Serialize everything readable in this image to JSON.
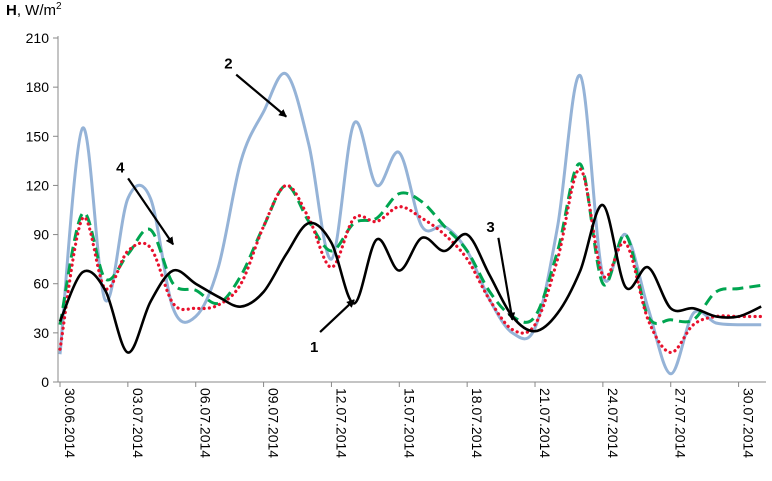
{
  "chart_data": {
    "type": "line",
    "ylabel": "H, W/m²",
    "ylabel_parts": {
      "bold": "H",
      "rest": ", W/m",
      "sup": "2"
    },
    "ylim": [
      0,
      210
    ],
    "yticks": [
      "0",
      "30",
      "60",
      "90",
      "120",
      "150",
      "180",
      "210"
    ],
    "xticks": [
      "30.06.2014",
      "03.07.2014",
      "06.07.2014",
      "09.07.2014",
      "12.07.2014",
      "15.07.2014",
      "18.07.2014",
      "21.07.2014",
      "24.07.2014",
      "27.07.2014",
      "30.07.2014"
    ],
    "grid": false,
    "series": [
      {
        "name": "1",
        "color": "#000000",
        "dash": "solid",
        "x": [
          "30.06.2014",
          "01.07.2014",
          "02.07.2014",
          "03.07.2014",
          "04.07.2014",
          "05.07.2014",
          "06.07.2014",
          "07.07.2014",
          "08.07.2014",
          "09.07.2014",
          "10.07.2014",
          "11.07.2014",
          "12.07.2014",
          "13.07.2014",
          "14.07.2014",
          "15.07.2014",
          "16.07.2014",
          "17.07.2014",
          "18.07.2014",
          "19.07.2014",
          "20.07.2014",
          "21.07.2014",
          "22.07.2014",
          "23.07.2014",
          "24.07.2014",
          "25.07.2014",
          "26.07.2014",
          "27.07.2014",
          "28.07.2014",
          "29.07.2014",
          "30.07.2014",
          "31.07.2014"
        ],
        "values": [
          37,
          67,
          56,
          18,
          49,
          68,
          60,
          52,
          46,
          55,
          78,
          97,
          85,
          48,
          87,
          68,
          88,
          80,
          90,
          65,
          40,
          31,
          42,
          68,
          108,
          58,
          70,
          45,
          45,
          40,
          40,
          46
        ]
      },
      {
        "name": "2",
        "color": "#95b3d7",
        "dash": "solid",
        "x": [
          "30.06.2014",
          "01.07.2014",
          "02.07.2014",
          "03.07.2014",
          "04.07.2014",
          "05.07.2014",
          "06.07.2014",
          "07.07.2014",
          "08.07.2014",
          "09.07.2014",
          "10.07.2014",
          "11.07.2014",
          "12.07.2014",
          "13.07.2014",
          "14.07.2014",
          "15.07.2014",
          "16.07.2014",
          "17.07.2014",
          "18.07.2014",
          "19.07.2014",
          "20.07.2014",
          "21.07.2014",
          "22.07.2014",
          "23.07.2014",
          "24.07.2014",
          "25.07.2014",
          "26.07.2014",
          "27.07.2014",
          "28.07.2014",
          "29.07.2014",
          "30.07.2014",
          "31.07.2014"
        ],
        "values": [
          17,
          155,
          50,
          112,
          112,
          45,
          40,
          70,
          135,
          165,
          188,
          145,
          75,
          158,
          120,
          140,
          95,
          95,
          80,
          50,
          30,
          33,
          95,
          187,
          65,
          90,
          45,
          5,
          42,
          36,
          35,
          35
        ]
      },
      {
        "name": "3",
        "color": "#00a550",
        "dash": "dashed",
        "x": [
          "30.06.2014",
          "01.07.2014",
          "02.07.2014",
          "03.07.2014",
          "04.07.2014",
          "05.07.2014",
          "06.07.2014",
          "07.07.2014",
          "08.07.2014",
          "09.07.2014",
          "10.07.2014",
          "11.07.2014",
          "12.07.2014",
          "13.07.2014",
          "14.07.2014",
          "15.07.2014",
          "16.07.2014",
          "17.07.2014",
          "18.07.2014",
          "19.07.2014",
          "20.07.2014",
          "21.07.2014",
          "22.07.2014",
          "23.07.2014",
          "24.07.2014",
          "25.07.2014",
          "26.07.2014",
          "27.07.2014",
          "28.07.2014",
          "29.07.2014",
          "30.07.2014",
          "31.07.2014"
        ],
        "values": [
          35,
          103,
          63,
          78,
          93,
          60,
          56,
          48,
          65,
          95,
          120,
          98,
          80,
          97,
          100,
          115,
          110,
          95,
          80,
          55,
          40,
          40,
          80,
          133,
          60,
          90,
          40,
          38,
          38,
          55,
          57,
          59
        ]
      },
      {
        "name": "4",
        "color": "#e8112d",
        "dash": "dotted",
        "x": [
          "30.06.2014",
          "01.07.2014",
          "02.07.2014",
          "03.07.2014",
          "04.07.2014",
          "05.07.2014",
          "06.07.2014",
          "07.07.2014",
          "08.07.2014",
          "09.07.2014",
          "10.07.2014",
          "11.07.2014",
          "12.07.2014",
          "13.07.2014",
          "14.07.2014",
          "15.07.2014",
          "16.07.2014",
          "17.07.2014",
          "18.07.2014",
          "19.07.2014",
          "20.07.2014",
          "21.07.2014",
          "22.07.2014",
          "23.07.2014",
          "24.07.2014",
          "25.07.2014",
          "26.07.2014",
          "27.07.2014",
          "28.07.2014",
          "29.07.2014",
          "30.07.2014",
          "31.07.2014"
        ],
        "values": [
          20,
          100,
          57,
          80,
          82,
          48,
          45,
          47,
          60,
          95,
          120,
          100,
          70,
          100,
          98,
          107,
          100,
          90,
          75,
          50,
          32,
          35,
          75,
          130,
          65,
          85,
          38,
          18,
          35,
          40,
          40,
          40
        ]
      }
    ],
    "annotations": [
      {
        "label": "1",
        "target_x": "13.07.2014",
        "target_y": 50
      },
      {
        "label": "2",
        "target_x": "10.07.2014",
        "target_y": 162
      },
      {
        "label": "3",
        "target_x": "20.07.2014",
        "target_y": 38
      },
      {
        "label": "4",
        "target_x": "05.07.2014",
        "target_y": 84
      }
    ]
  }
}
